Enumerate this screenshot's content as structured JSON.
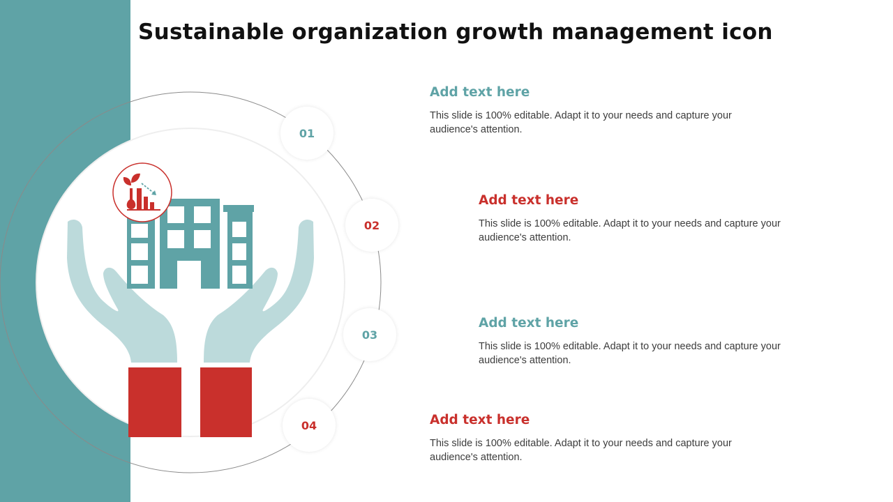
{
  "title": "Sustainable organization growth management icon",
  "steps": [
    {
      "number": "01",
      "heading": "Add text here",
      "body": "This slide is 100% editable. Adapt it to your needs and capture your audience's attention."
    },
    {
      "number": "02",
      "heading": "Add text here",
      "body": "This slide is 100% editable. Adapt it to your needs and capture your audience's attention."
    },
    {
      "number": "03",
      "heading": "Add text here",
      "body": "This slide is 100% editable. Adapt it to your needs and capture your audience's attention."
    },
    {
      "number": "04",
      "heading": "Add text here",
      "body": "This slide is 100% editable. Adapt it to your needs and capture your audience's attention."
    }
  ],
  "colors": {
    "teal": "#5fa3a6",
    "light_teal": "#bcdadb",
    "red": "#c9302c"
  },
  "icons": [
    "building-icon",
    "hands-icon",
    "plant-growth-chart-icon"
  ]
}
